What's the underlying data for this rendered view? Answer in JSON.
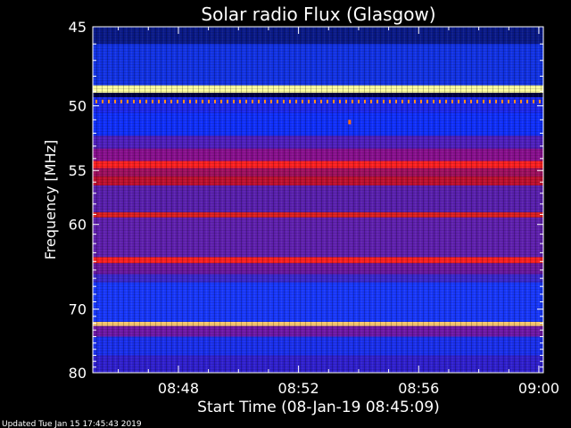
{
  "chart_data": {
    "type": "heatmap",
    "title": "Solar radio Flux (Glasgow)",
    "xlabel": "Start Time (08-Jan-19 08:45:09)",
    "ylabel": "Frequency [MHz]",
    "x_tick_labels": [
      "08:48",
      "08:52",
      "08:56",
      "09:00"
    ],
    "x_ticks_minutes": [
      2.85,
      6.85,
      10.85,
      14.85
    ],
    "xlim_minutes": [
      0,
      15
    ],
    "y_tick_labels": [
      "45",
      "50",
      "55",
      "60",
      "70",
      "80"
    ],
    "y_ticks_mhz": [
      45,
      50,
      55,
      60,
      70,
      80
    ],
    "ylim_mhz": [
      45,
      80
    ],
    "y_scale": "reciprocal",
    "colormap": [
      "#000050",
      "#1020ff",
      "#7010a0",
      "#e01010",
      "#ffff90"
    ],
    "bands": [
      {
        "from": 45.0,
        "to": 46.0,
        "color": "#0a1a8a"
      },
      {
        "from": 46.0,
        "to": 48.6,
        "color": "#1233e8"
      },
      {
        "from": 48.6,
        "to": 49.1,
        "color": "#ffffa0"
      },
      {
        "from": 49.1,
        "to": 49.4,
        "color": "#000040"
      },
      {
        "from": 49.4,
        "to": 50.5,
        "color": "#1a28f0"
      },
      {
        "from": 50.5,
        "to": 52.2,
        "color": "#1030ff"
      },
      {
        "from": 52.2,
        "to": 53.2,
        "color": "#5020c0"
      },
      {
        "from": 53.2,
        "to": 54.2,
        "color": "#8a1090"
      },
      {
        "from": 54.2,
        "to": 54.8,
        "color": "#ff2020"
      },
      {
        "from": 54.8,
        "to": 55.5,
        "color": "#a01060"
      },
      {
        "from": 55.5,
        "to": 56.3,
        "color": "#c01030"
      },
      {
        "from": 56.3,
        "to": 58.8,
        "color": "#5a20b0"
      },
      {
        "from": 58.8,
        "to": 59.3,
        "color": "#e02020"
      },
      {
        "from": 59.3,
        "to": 63.5,
        "color": "#6020b0"
      },
      {
        "from": 63.5,
        "to": 64.2,
        "color": "#ff2020"
      },
      {
        "from": 64.2,
        "to": 65.5,
        "color": "#6a18a0"
      },
      {
        "from": 65.5,
        "to": 66.5,
        "color": "#3a28d0"
      },
      {
        "from": 66.5,
        "to": 71.8,
        "color": "#1838ff"
      },
      {
        "from": 71.8,
        "to": 72.4,
        "color": "#ffcc70"
      },
      {
        "from": 72.4,
        "to": 74.0,
        "color": "#7018a8"
      },
      {
        "from": 74.0,
        "to": 77.0,
        "color": "#1a30f0"
      },
      {
        "from": 77.0,
        "to": 80.0,
        "color": "#3020d0"
      }
    ],
    "burst_dots": {
      "frequency_mhz": 49.7,
      "color": "#ff9020"
    },
    "spike": {
      "time_minutes": 8.55,
      "frequency_mhz": 51.2,
      "color": "#ff7010"
    }
  },
  "footer": {
    "updated": "Updated Tue Jan 15 17:45:43 2019"
  }
}
